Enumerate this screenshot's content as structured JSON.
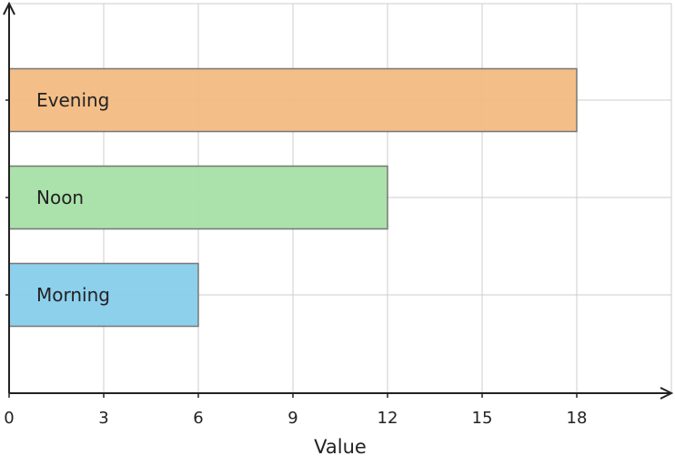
{
  "chart_data": {
    "type": "bar",
    "orientation": "horizontal",
    "categories": [
      "Morning",
      "Noon",
      "Evening"
    ],
    "values": [
      6,
      12,
      18
    ],
    "colors": [
      "#87ceeb",
      "#a6dfa6",
      "#f2bb82"
    ],
    "title": "",
    "xlabel": "Value",
    "ylabel": "",
    "xlim": [
      0,
      21
    ],
    "xticks": [
      0,
      3,
      6,
      9,
      12,
      15,
      18
    ],
    "grid": true,
    "label_position": "inside-left"
  },
  "style": {
    "grid_color": "#cccccc",
    "axis_color": "#222222",
    "bar_edge_color": "#777777",
    "text_color": "#222222"
  }
}
